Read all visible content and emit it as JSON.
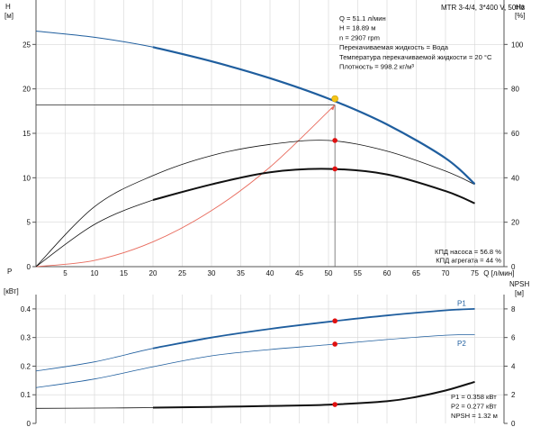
{
  "chart_data": [
    {
      "type": "line",
      "title": "MTR 3-4/4, 3*400 V, 50Hz",
      "y_left_label": [
        "H",
        "[м]"
      ],
      "y_right_label": [
        "eta",
        "[%]"
      ],
      "x_label": "Q [л/мин]",
      "xlim": [
        0,
        80
      ],
      "x_ticks": [
        "5",
        "10",
        "15",
        "20",
        "25",
        "30",
        "35",
        "40",
        "45",
        "50",
        "55",
        "60",
        "65",
        "70",
        "75"
      ],
      "x_tick_values": [
        5,
        10,
        15,
        20,
        25,
        30,
        35,
        40,
        45,
        50,
        55,
        60,
        65,
        70,
        75
      ],
      "y_left_lim": [
        0,
        30
      ],
      "y_left_ticks": [
        "0",
        "5",
        "10",
        "15",
        "20",
        "25"
      ],
      "y_left_tick_values": [
        0,
        5,
        10,
        15,
        20,
        25
      ],
      "y_right_lim": [
        0,
        120
      ],
      "y_right_ticks": [
        "0",
        "20",
        "40",
        "60",
        "80",
        "100"
      ],
      "y_right_tick_values": [
        0,
        20,
        40,
        60,
        80,
        100
      ],
      "grid": true,
      "series": [
        {
          "id": "H",
          "axis": "left",
          "color": "#1f5e9e",
          "x": [
            0,
            10,
            20,
            30,
            40,
            50,
            60,
            70,
            75
          ],
          "y": [
            26.5,
            25.8,
            24.7,
            23.1,
            21.2,
            18.9,
            16.0,
            12.2,
            9.3
          ]
        },
        {
          "id": "eta_pump",
          "axis": "right",
          "color": "#111111",
          "x": [
            0,
            10,
            20,
            30,
            40,
            50,
            60,
            70,
            75
          ],
          "y": [
            0,
            27,
            41,
            50,
            55,
            56.8,
            52,
            43,
            37
          ]
        },
        {
          "id": "eta_unit",
          "axis": "right",
          "color": "#111111",
          "x": [
            0,
            10,
            20,
            30,
            40,
            50,
            60,
            70,
            75
          ],
          "y": [
            0,
            19,
            30,
            37,
            42.5,
            44,
            41.5,
            34,
            28.5
          ]
        },
        {
          "id": "system",
          "axis": "left",
          "color": "#e86a5c",
          "x": [
            0,
            10,
            20,
            30,
            40,
            51.1
          ],
          "y": [
            0,
            0.7,
            2.8,
            6.3,
            11.2,
            18.2
          ]
        }
      ],
      "duty_point": {
        "x": 51.1,
        "H": 18.89,
        "eta_pump": 56.8,
        "eta_unit": 44
      },
      "info_lines": [
        "Q = 51.1 л/мин",
        "H = 18.89 м",
        "n = 2907 rpm",
        "Перекачиваемая жидкость = Вода",
        "Температура перекачиваемой жидкости = 20 °C",
        "Плотность = 998.2 кг/м³"
      ],
      "eff_lines": [
        "КПД насоса = 56.8 %",
        "КПД агрегата = 44 %"
      ]
    },
    {
      "type": "line",
      "y_left_label": [
        "P",
        "[кВт]"
      ],
      "y_right_label": [
        "NPSH",
        "[м]"
      ],
      "xlim": [
        0,
        80
      ],
      "y_left_lim": [
        0,
        0.45
      ],
      "y_left_ticks": [
        "0",
        "0.1",
        "0.2",
        "0.3",
        "0.4"
      ],
      "y_left_tick_values": [
        0,
        0.1,
        0.2,
        0.3,
        0.4
      ],
      "y_right_lim": [
        0,
        9
      ],
      "y_right_ticks": [
        "0",
        "2",
        "4",
        "6",
        "8"
      ],
      "y_right_tick_values": [
        0,
        2,
        4,
        6,
        8
      ],
      "grid": true,
      "series": [
        {
          "id": "P1",
          "name": "P1",
          "axis": "left",
          "color": "#1f5e9e",
          "x": [
            0,
            10,
            20,
            30,
            40,
            50,
            60,
            70,
            75
          ],
          "y": [
            0.183,
            0.215,
            0.262,
            0.3,
            0.33,
            0.355,
            0.377,
            0.395,
            0.4
          ]
        },
        {
          "id": "P2",
          "name": "P2",
          "axis": "left",
          "color": "#1f5e9e",
          "x": [
            0,
            10,
            20,
            30,
            40,
            50,
            60,
            70,
            75
          ],
          "y": [
            0.125,
            0.155,
            0.198,
            0.236,
            0.258,
            0.275,
            0.293,
            0.308,
            0.31
          ]
        },
        {
          "id": "NPSH",
          "axis": "right",
          "color": "#111111",
          "x": [
            0,
            10,
            20,
            30,
            40,
            50,
            60,
            65,
            70,
            75
          ],
          "y": [
            1.05,
            1.07,
            1.1,
            1.15,
            1.22,
            1.31,
            1.55,
            1.85,
            2.3,
            2.9
          ]
        }
      ],
      "duty_point": {
        "x": 51.1,
        "P1": 0.358,
        "P2": 0.277,
        "NPSH": 1.32
      },
      "info_lines": [
        "P1 = 0.358 кВт",
        "P2 = 0.277 кВт",
        "NPSH = 1.32 м"
      ]
    }
  ]
}
